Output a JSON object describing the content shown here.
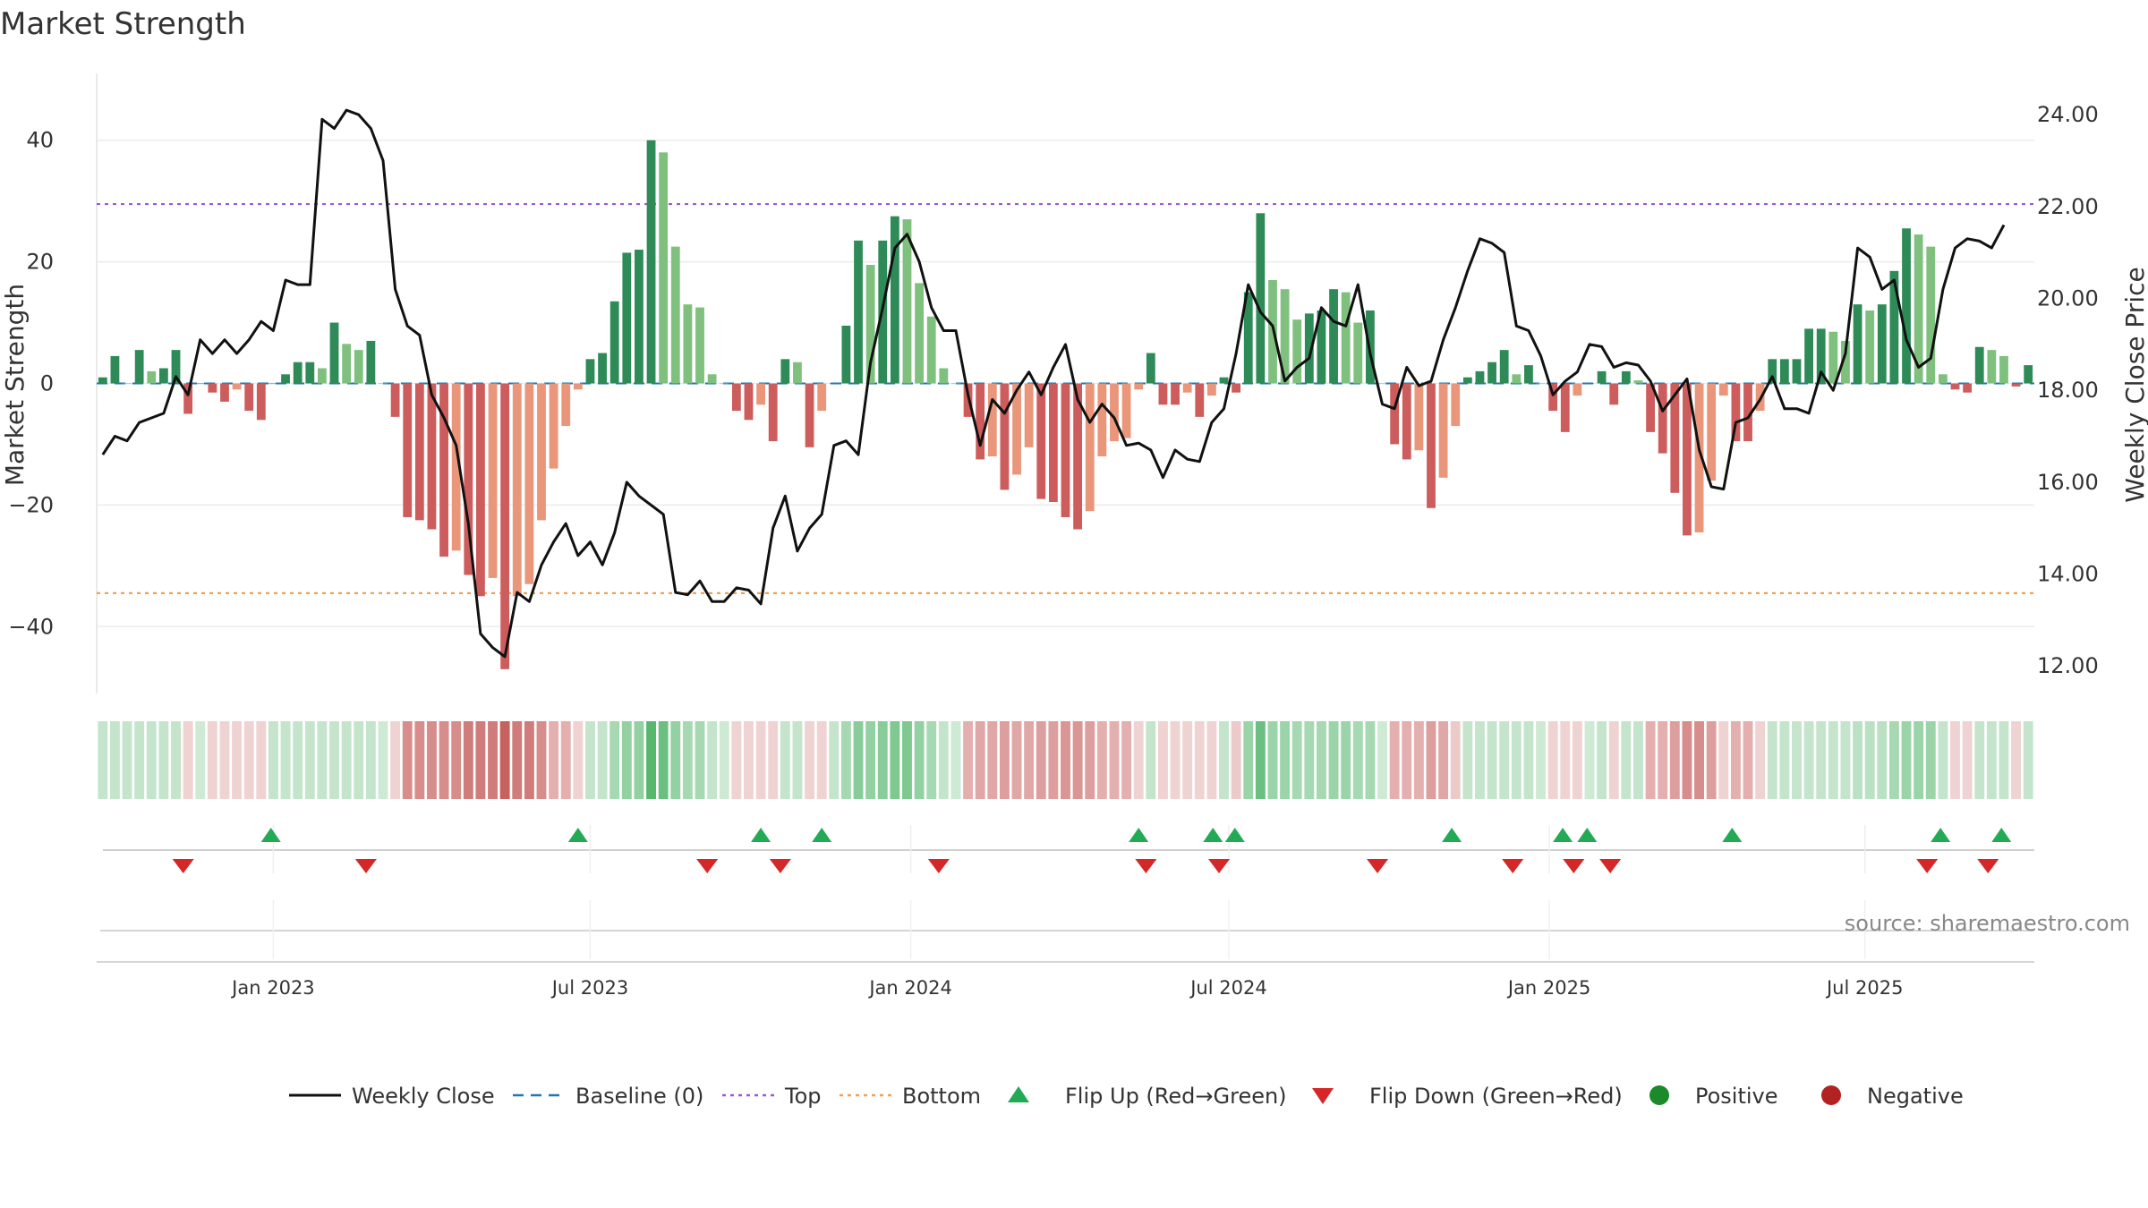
{
  "chart_data": {
    "type": "bar",
    "title": "Market Strength",
    "ylabel_left": "Market Strength",
    "ylabel_right": "Weekly Close Price",
    "source": "source: sharemaestro.com",
    "y_left": {
      "min": -51,
      "max": 51,
      "ticks": [
        40,
        20,
        0,
        -20,
        -40
      ],
      "tick_labels": [
        "40",
        "20",
        "0",
        "−20",
        "−40"
      ]
    },
    "y_right": {
      "min": 11.4,
      "max": 24.9,
      "ticks": [
        24,
        22,
        20,
        18,
        16,
        14,
        12
      ],
      "tick_labels": [
        "24.00",
        "22.00",
        "20.00",
        "18.00",
        "16.00",
        "14.00",
        "12.00"
      ]
    },
    "x_ticks": [
      {
        "week": 14.5,
        "label": "Jan 2023"
      },
      {
        "week": 40.5,
        "label": "Jul 2023"
      },
      {
        "week": 66.8,
        "label": "Jan 2024"
      },
      {
        "week": 92.9,
        "label": "Jul 2024"
      },
      {
        "week": 119.2,
        "label": "Jan 2025"
      },
      {
        "week": 145.1,
        "label": "Jul 2025"
      }
    ],
    "top_line": 29.5,
    "bottom_line": -34.5,
    "strength": [
      1,
      4.5,
      0,
      5.5,
      2,
      2.5,
      5.5,
      -5,
      0,
      -1.5,
      -3,
      -1,
      -4.5,
      -6,
      0,
      1.5,
      3.5,
      3.5,
      2.5,
      10,
      6.5,
      5.5,
      7,
      0,
      -5.5,
      -22,
      -22.5,
      -24,
      -28.5,
      -27.5,
      -31.5,
      -35,
      -32,
      -47,
      -35,
      -33,
      -22.5,
      -14,
      -7,
      -1,
      4,
      5,
      13.5,
      21.5,
      22,
      40,
      38,
      22.5,
      13,
      12.5,
      1.5,
      0,
      -4.5,
      -6,
      -3.5,
      -9.5,
      4,
      3.5,
      -10.5,
      -4.5,
      0,
      9.5,
      23.5,
      19.5,
      23.5,
      27.5,
      27,
      16.5,
      11,
      2.5,
      0,
      -5.5,
      -12.5,
      -12,
      -17.5,
      -15,
      -10.5,
      -19,
      -19.5,
      -22,
      -24,
      -21,
      -12,
      -9.5,
      -9,
      -1,
      5,
      -3.5,
      -3.5,
      -1.5,
      -5.5,
      -2,
      1,
      -1.5,
      15,
      28,
      17,
      15.5,
      10.5,
      11.5,
      12,
      15.5,
      15,
      10,
      12,
      0,
      -10,
      -12.5,
      -11,
      -20.5,
      -15.5,
      -7,
      1,
      2,
      3.5,
      5.5,
      1.5,
      3,
      0,
      -4.5,
      -8,
      -2,
      0,
      2,
      -3.5,
      2,
      0.5,
      -8,
      -11.5,
      -18,
      -25,
      -24.5,
      -16,
      -2,
      -9.5,
      -9.5,
      -4.5,
      4,
      4,
      4,
      9,
      9,
      8.5,
      7,
      13,
      12,
      13,
      18.5,
      25.5,
      24.5,
      22.5,
      1.5,
      -1,
      -1.5,
      6,
      5.5,
      4.5,
      -0.5,
      3
    ],
    "price": [
      16.6,
      17,
      16.9,
      17.3,
      17.4,
      17.5,
      18.3,
      17.9,
      19.1,
      18.8,
      19.1,
      18.8,
      19.1,
      19.5,
      19.3,
      20.4,
      20.3,
      20.3,
      23.9,
      23.7,
      24.1,
      24,
      23.7,
      23,
      20.2,
      19.4,
      19.2,
      17.9,
      17.4,
      16.8,
      15.1,
      12.7,
      12.4,
      12.2,
      13.6,
      13.4,
      14.2,
      14.7,
      15.1,
      14.4,
      14.7,
      14.2,
      14.9,
      16,
      15.7,
      15.5,
      15.3,
      13.6,
      13.55,
      13.85,
      13.4,
      13.4,
      13.7,
      13.65,
      13.35,
      15,
      15.7,
      14.5,
      15,
      15.3,
      16.8,
      16.9,
      16.6,
      18.6,
      19.8,
      21.1,
      21.4,
      20.8,
      19.8,
      19.3,
      19.3,
      17.9,
      16.8,
      17.8,
      17.5,
      18,
      18.4,
      17.9,
      18.5,
      19,
      17.8,
      17.3,
      17.7,
      17.4,
      16.8,
      16.85,
      16.7,
      16.1,
      16.7,
      16.5,
      16.45,
      17.3,
      17.6,
      18.8,
      20.3,
      19.7,
      19.4,
      18.2,
      18.5,
      18.7,
      19.8,
      19.5,
      19.4,
      20.3,
      18.8,
      17.7,
      17.6,
      18.5,
      18.1,
      18.2,
      19.1,
      19.8,
      20.6,
      21.3,
      21.2,
      21,
      19.4,
      19.3,
      18.75,
      17.9,
      18.2,
      18.4,
      19,
      18.95,
      18.5,
      18.6,
      18.55,
      18.2,
      17.55,
      17.9,
      18.25,
      16.7,
      15.9,
      15.85,
      17.3,
      17.4,
      17.8,
      18.3,
      17.6,
      17.6,
      17.5,
      18.4,
      18,
      18.8,
      21.1,
      20.9,
      20.2,
      20.4,
      19.1,
      18.5,
      18.7,
      20.2,
      21.1,
      21.3,
      21.25,
      21.1,
      21.6
    ],
    "heat_alpha": [
      0.3,
      0.3,
      0.3,
      0.3,
      0.3,
      0.3,
      0.3,
      0.25,
      0.25,
      0.25,
      0.25,
      0.25,
      0.25,
      0.25,
      0.3,
      0.3,
      0.3,
      0.3,
      0.3,
      0.3,
      0.3,
      0.3,
      0.3,
      0.25,
      0.25,
      0.65,
      0.65,
      0.65,
      0.65,
      0.65,
      0.75,
      0.75,
      0.75,
      0.9,
      0.75,
      0.75,
      0.65,
      0.45,
      0.45,
      0.25,
      0.3,
      0.3,
      0.45,
      0.55,
      0.55,
      0.85,
      0.75,
      0.55,
      0.45,
      0.45,
      0.3,
      0.25,
      0.25,
      0.25,
      0.25,
      0.25,
      0.3,
      0.3,
      0.25,
      0.25,
      0.3,
      0.45,
      0.6,
      0.55,
      0.6,
      0.65,
      0.65,
      0.55,
      0.45,
      0.3,
      0.25,
      0.45,
      0.5,
      0.5,
      0.55,
      0.5,
      0.5,
      0.55,
      0.55,
      0.6,
      0.6,
      0.55,
      0.45,
      0.45,
      0.45,
      0.25,
      0.3,
      0.25,
      0.25,
      0.25,
      0.25,
      0.25,
      0.3,
      0.3,
      0.5,
      0.75,
      0.5,
      0.5,
      0.45,
      0.45,
      0.45,
      0.5,
      0.5,
      0.45,
      0.45,
      0.25,
      0.45,
      0.45,
      0.45,
      0.55,
      0.5,
      0.3,
      0.3,
      0.3,
      0.3,
      0.3,
      0.3,
      0.3,
      0.25,
      0.25,
      0.25,
      0.25,
      0.25,
      0.3,
      0.25,
      0.3,
      0.3,
      0.45,
      0.45,
      0.55,
      0.65,
      0.65,
      0.55,
      0.25,
      0.45,
      0.45,
      0.25,
      0.3,
      0.3,
      0.3,
      0.3,
      0.3,
      0.3,
      0.3,
      0.35,
      0.35,
      0.35,
      0.45,
      0.5,
      0.5,
      0.5,
      0.3,
      0.25,
      0.25,
      0.3,
      0.3,
      0.3,
      0.25,
      0.3
    ],
    "flip_up": [
      14.3,
      39.5,
      54.5,
      59.5,
      85.5,
      91.6,
      93.4,
      111.2,
      120.3,
      122.3,
      134.2,
      151.3,
      156.3
    ],
    "flip_down": [
      7.1,
      22.1,
      50.1,
      56.1,
      69.1,
      86.1,
      92.1,
      105.1,
      116.2,
      121.2,
      124.2,
      150.2,
      155.2
    ],
    "legend": [
      {
        "label": "Weekly Close",
        "marker": "solid-line",
        "color": "#111111"
      },
      {
        "label": "Baseline (0)",
        "marker": "dashed-line",
        "color": "#1f77b4"
      },
      {
        "label": "Top",
        "marker": "dotted-line",
        "color": "#9b59d0"
      },
      {
        "label": "Bottom",
        "marker": "dotted-line",
        "color": "#f0a050"
      },
      {
        "label": "Flip Up (Red→Green)",
        "marker": "triangle-up",
        "color": "#22aa55"
      },
      {
        "label": "Flip Down (Green→Red)",
        "marker": "triangle-down",
        "color": "#d62728"
      },
      {
        "label": "Positive",
        "marker": "circle",
        "color": "#1a8a2a"
      },
      {
        "label": "Negative",
        "marker": "circle",
        "color": "#b22222"
      }
    ],
    "colors": {
      "pos_dark": "#2e8b57",
      "pos_light": "#7fc07f",
      "neg_dark": "#cd5c5c",
      "neg_light": "#e9967a",
      "heat_pos": "#3aaa55",
      "heat_neg": "#c0504d",
      "price_line": "#111111",
      "baseline": "#1f77b4",
      "top": "#9b59d0",
      "bottom": "#f0a050",
      "grid": "#ececec"
    }
  }
}
